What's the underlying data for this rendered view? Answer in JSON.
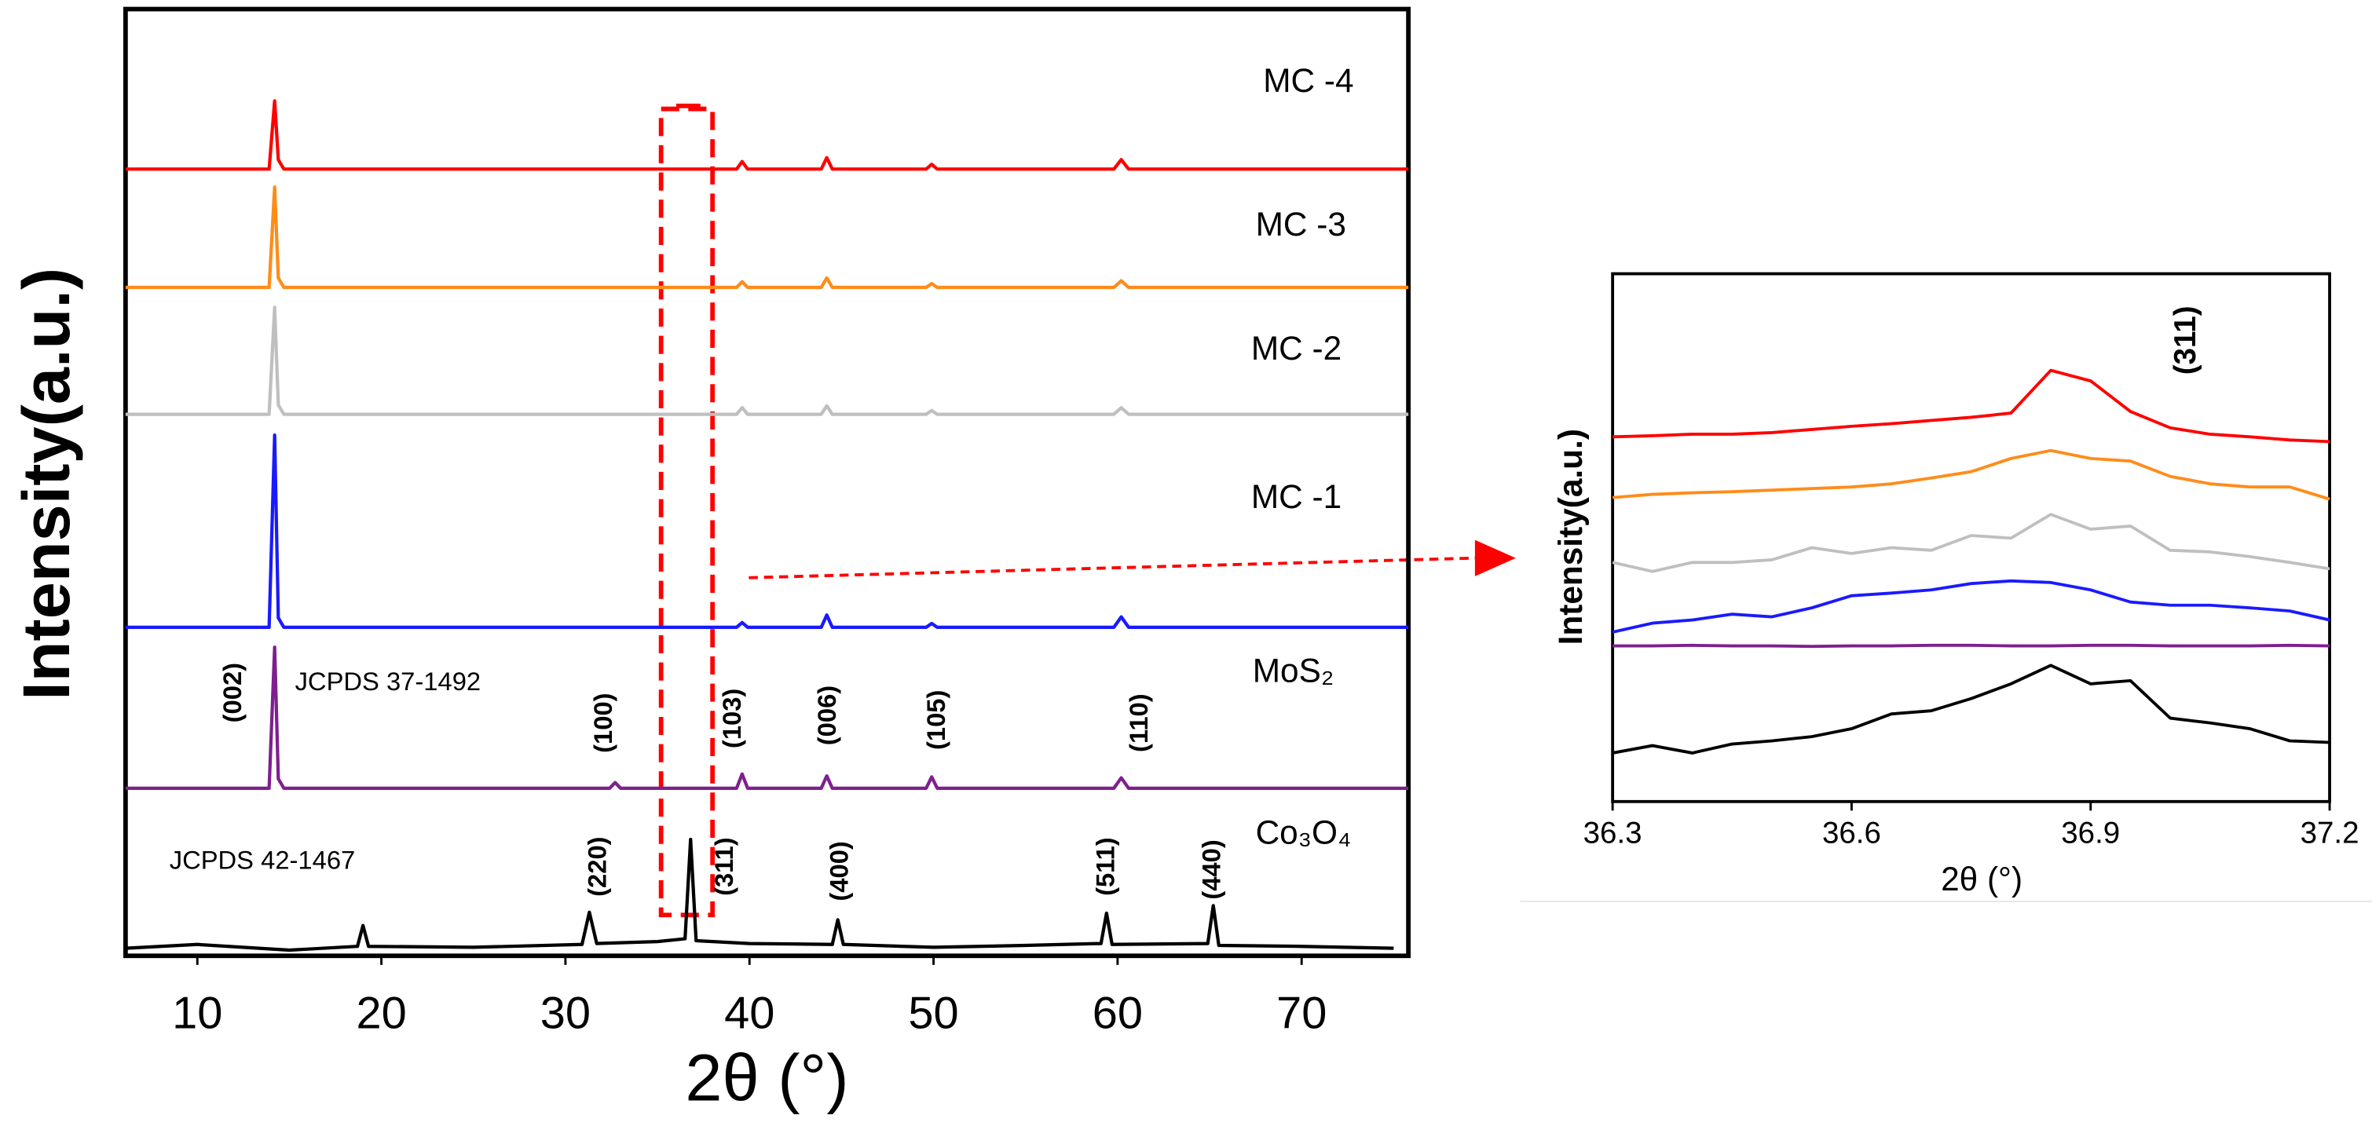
{
  "chart_data": [
    {
      "type": "line",
      "xlabel": "2θ (°)",
      "ylabel": "Intensity(a.u.)",
      "xlim": [
        6.1,
        75.8
      ],
      "ylim": [
        0,
        100
      ],
      "xticks": [
        10,
        20,
        30,
        40,
        50,
        60,
        70
      ],
      "annotations": [
        "JCPDS 37-1492",
        "JCPDS 42-1467",
        "(002)",
        "(100)",
        "(103)",
        "(006)",
        "(105)",
        "(110)",
        "(220)",
        "(311)",
        "(400)",
        "(511)",
        "(440)"
      ],
      "series": [
        {
          "name": "MC -4",
          "color": "#ff0000",
          "x": [
            6.1,
            13.9,
            14.2,
            14.4,
            14.7,
            39.3,
            39.6,
            39.9,
            43.9,
            44.2,
            44.5,
            49.6,
            49.9,
            50.2,
            59.8,
            60.2,
            60.6,
            75.8
          ],
          "values": [
            83.1,
            83.1,
            90.3,
            84.1,
            83.1,
            83.1,
            83.9,
            83.1,
            83.1,
            84.3,
            83.1,
            83.1,
            83.6,
            83.1,
            83.1,
            84.1,
            83.1,
            83.1
          ]
        },
        {
          "name": "MC -3",
          "color": "#ff8c1a",
          "x": [
            6.1,
            13.9,
            14.2,
            14.4,
            14.7,
            39.3,
            39.6,
            39.9,
            43.9,
            44.2,
            44.5,
            49.6,
            49.9,
            50.2,
            59.8,
            60.2,
            60.6,
            75.8
          ],
          "values": [
            70.6,
            70.6,
            81.2,
            71.6,
            70.6,
            70.6,
            71.2,
            70.6,
            70.6,
            71.6,
            70.6,
            70.6,
            71.0,
            70.6,
            70.6,
            71.3,
            70.6,
            70.6
          ]
        },
        {
          "name": "MC -2",
          "color": "#bfbfbf",
          "x": [
            6.1,
            13.9,
            14.2,
            14.4,
            14.7,
            39.3,
            39.6,
            39.9,
            43.9,
            44.2,
            44.5,
            49.6,
            49.9,
            50.2,
            59.8,
            60.2,
            60.6,
            75.8
          ],
          "values": [
            57.2,
            57.2,
            68.5,
            58.2,
            57.2,
            57.2,
            57.9,
            57.2,
            57.2,
            58.1,
            57.2,
            57.2,
            57.6,
            57.2,
            57.2,
            57.9,
            57.2,
            57.2
          ]
        },
        {
          "name": "MC -1",
          "color": "#1a1aff",
          "x": [
            6.1,
            13.9,
            14.2,
            14.4,
            14.7,
            39.3,
            39.6,
            39.9,
            43.9,
            44.2,
            44.5,
            49.6,
            49.9,
            50.2,
            59.8,
            60.2,
            60.6,
            75.8
          ],
          "values": [
            34.7,
            34.7,
            55.0,
            35.7,
            34.7,
            34.7,
            35.2,
            34.7,
            34.7,
            36.0,
            34.7,
            34.7,
            35.1,
            34.7,
            34.7,
            35.8,
            34.7,
            34.7
          ]
        },
        {
          "name": "MoS₂",
          "color": "#7f1f8f",
          "x": [
            6.1,
            13.9,
            14.2,
            14.4,
            14.7,
            32.4,
            32.7,
            33.0,
            39.3,
            39.6,
            39.9,
            43.9,
            44.2,
            44.5,
            49.6,
            49.9,
            50.2,
            59.8,
            60.2,
            60.6,
            75.8
          ],
          "values": [
            17.7,
            17.7,
            32.6,
            18.7,
            17.7,
            17.7,
            18.3,
            17.7,
            17.7,
            19.2,
            17.7,
            17.7,
            19.0,
            17.7,
            17.7,
            18.9,
            17.7,
            17.7,
            18.8,
            17.7,
            17.7
          ]
        },
        {
          "name": "Co₃O₄",
          "color": "#000000",
          "x": [
            6.1,
            10,
            15,
            18.7,
            19,
            19.3,
            25,
            30.9,
            31.3,
            31.7,
            35,
            36.5,
            36.8,
            37.1,
            40,
            44.5,
            44.8,
            45.1,
            50,
            55,
            59.1,
            59.4,
            59.7,
            64.9,
            65.2,
            65.5,
            70,
            75
          ],
          "values": [
            0.8,
            1.2,
            0.6,
            1.0,
            3.2,
            1.0,
            0.9,
            1.2,
            4.6,
            1.3,
            1.5,
            1.8,
            12.3,
            1.6,
            1.3,
            1.2,
            3.8,
            1.2,
            0.9,
            1.1,
            1.3,
            4.5,
            1.2,
            1.3,
            5.3,
            1.1,
            1.0,
            0.8
          ]
        }
      ]
    },
    {
      "type": "line",
      "xlabel": "2θ (°)",
      "ylabel": "Intensity(a.u.)",
      "annotation": "(311)",
      "xlim": [
        36.3,
        37.2
      ],
      "ylim": [
        0,
        100
      ],
      "xticks": [
        36.3,
        36.6,
        36.9,
        37.2
      ],
      "x": [
        36.3,
        36.35,
        36.4,
        36.45,
        36.5,
        36.55,
        36.6,
        36.65,
        36.7,
        36.75,
        36.8,
        36.85,
        36.9,
        36.95,
        37.0,
        37.05,
        37.1,
        37.15,
        37.2
      ],
      "series": [
        {
          "color": "#ff0000",
          "values": [
            69.1,
            69.3,
            69.6,
            69.6,
            69.9,
            70.5,
            71.1,
            71.6,
            72.2,
            72.8,
            73.6,
            81.7,
            79.7,
            73.9,
            70.8,
            69.6,
            69.1,
            68.5,
            68.2
          ]
        },
        {
          "color": "#ff8c1a",
          "values": [
            57.6,
            58.2,
            58.5,
            58.7,
            59.0,
            59.3,
            59.6,
            60.2,
            61.3,
            62.5,
            65.0,
            66.5,
            65.0,
            64.5,
            61.6,
            60.2,
            59.6,
            59.6,
            57.3
          ]
        },
        {
          "color": "#bfbfbf",
          "values": [
            45.3,
            43.6,
            45.3,
            45.3,
            45.8,
            48.1,
            47.0,
            48.1,
            47.6,
            50.4,
            49.9,
            54.4,
            51.6,
            52.2,
            47.6,
            47.3,
            46.4,
            45.3,
            44.1
          ]
        },
        {
          "color": "#1a1aff",
          "values": [
            32.1,
            33.8,
            34.4,
            35.5,
            35.0,
            36.7,
            39.0,
            39.5,
            40.1,
            41.3,
            41.8,
            41.5,
            40.1,
            37.8,
            37.2,
            37.2,
            36.7,
            36.1,
            34.4
          ]
        },
        {
          "color": "#7f1f8f",
          "values": [
            29.5,
            29.5,
            29.6,
            29.5,
            29.5,
            29.4,
            29.5,
            29.5,
            29.6,
            29.6,
            29.5,
            29.5,
            29.6,
            29.6,
            29.5,
            29.5,
            29.5,
            29.6,
            29.5
          ]
        },
        {
          "color": "#000000",
          "values": [
            9.2,
            10.6,
            9.2,
            10.9,
            11.5,
            12.3,
            13.8,
            16.6,
            17.2,
            19.5,
            22.3,
            25.8,
            22.3,
            22.9,
            15.8,
            14.9,
            13.8,
            11.5,
            11.2
          ]
        }
      ]
    }
  ]
}
